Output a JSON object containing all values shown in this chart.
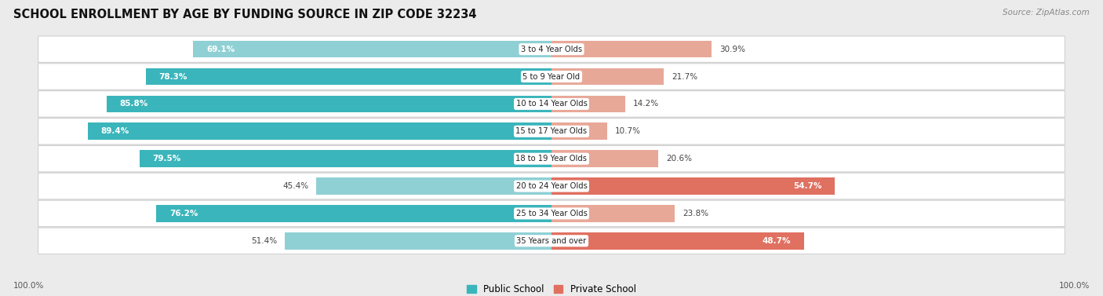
{
  "title": "SCHOOL ENROLLMENT BY AGE BY FUNDING SOURCE IN ZIP CODE 32234",
  "source": "Source: ZipAtlas.com",
  "categories": [
    "3 to 4 Year Olds",
    "5 to 9 Year Old",
    "10 to 14 Year Olds",
    "15 to 17 Year Olds",
    "18 to 19 Year Olds",
    "20 to 24 Year Olds",
    "25 to 34 Year Olds",
    "35 Years and over"
  ],
  "public_pct": [
    69.1,
    78.3,
    85.8,
    89.4,
    79.5,
    45.4,
    76.2,
    51.4
  ],
  "private_pct": [
    30.9,
    21.7,
    14.2,
    10.7,
    20.6,
    54.7,
    23.8,
    48.7
  ],
  "public_color_dark": "#3ab5bb",
  "public_color_light": "#8fd0d4",
  "private_color_dark": "#e07060",
  "private_color_light": "#e8a898",
  "bg_color": "#ebebeb",
  "bar_bg": "#ffffff",
  "legend_public": "Public School",
  "legend_private": "Private School",
  "bar_height": 0.62,
  "axis_label_left": "100.0%",
  "axis_label_right": "100.0%",
  "public_dark_threshold": 70,
  "private_dark_threshold": 45,
  "pub_label_inside_threshold": 60,
  "priv_label_inside_threshold": 35
}
